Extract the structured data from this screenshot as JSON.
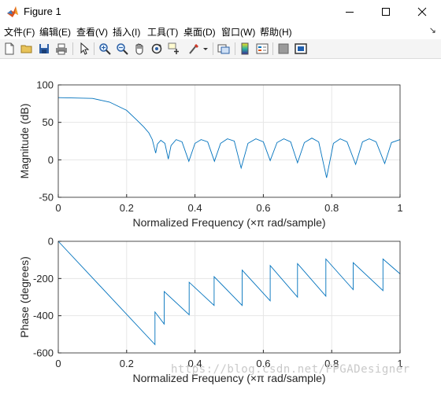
{
  "window": {
    "title": "Figure 1"
  },
  "icons": {
    "app": "matlab-logo-icon",
    "minimize": "minimize-icon",
    "maximize": "maximize-icon",
    "close": "close-icon"
  },
  "menu": {
    "items": [
      "文件(F)",
      "编辑(E)",
      "查看(V)",
      "插入(I)",
      "工具(T)",
      "桌面(D)",
      "窗口(W)",
      "帮助(H)"
    ],
    "overflow": "↘"
  },
  "toolbar": {
    "buttons": [
      "new-figure",
      "open-file",
      "save",
      "print",
      "edit-plot",
      "zoom-in",
      "zoom-out",
      "pan",
      "rotate-3d",
      "data-cursor",
      "brush",
      "link-plot",
      "insert-colorbar",
      "insert-legend",
      "hide-plot-tools",
      "show-plot-tools"
    ]
  },
  "colors": {
    "line": "#0072bd",
    "grid": "#e6e6e6",
    "axis": "#262626"
  },
  "chart_data": [
    {
      "type": "line",
      "title": "",
      "xlabel": "Normalized Frequency  (×π rad/sample)",
      "ylabel": "Magnitude (dB)",
      "xlim": [
        0,
        1
      ],
      "ylim": [
        -50,
        100
      ],
      "xticks": [
        "0",
        "0.2",
        "0.4",
        "0.6",
        "0.8",
        "1"
      ],
      "yticks": [
        "-50",
        "0",
        "50",
        "100"
      ],
      "grid": true,
      "series": [
        {
          "x": [
            0,
            0.1,
            0.15,
            0.2,
            0.23,
            0.25,
            0.265,
            0.275,
            0.285,
            0.29,
            0.3,
            0.312,
            0.322,
            0.33,
            0.345,
            0.362,
            0.382,
            0.4,
            0.418,
            0.437,
            0.457,
            0.475,
            0.495,
            0.515,
            0.535,
            0.555,
            0.578,
            0.6,
            0.62,
            0.64,
            0.66,
            0.68,
            0.7,
            0.72,
            0.742,
            0.762,
            0.785,
            0.805,
            0.825,
            0.845,
            0.87,
            0.89,
            0.91,
            0.93,
            0.955,
            0.975,
            1.0
          ],
          "y": [
            83,
            82,
            77,
            66,
            53,
            44,
            36,
            27,
            9,
            21,
            26,
            22,
            1,
            19,
            27,
            24,
            -2,
            22,
            27,
            24,
            -2,
            22,
            28,
            25,
            -11,
            22,
            28,
            24,
            -1,
            23,
            28,
            24,
            -4,
            23,
            29,
            24,
            -24,
            22,
            28,
            24,
            -6,
            24,
            28,
            24,
            -5,
            23,
            27
          ]
        }
      ]
    },
    {
      "type": "line",
      "title": "",
      "xlabel": "Normalized Frequency  (×π rad/sample)",
      "ylabel": "Phase (degrees)",
      "xlim": [
        0,
        1
      ],
      "ylim": [
        -600,
        0
      ],
      "xticks": [
        "0",
        "0.2",
        "0.4",
        "0.6",
        "0.8",
        "1"
      ],
      "yticks": [
        "-600",
        "-400",
        "-200",
        "0"
      ],
      "grid": true,
      "series": [
        {
          "x": [
            0,
            0.283,
            0.283,
            0.31,
            0.31,
            0.383,
            0.383,
            0.456,
            0.456,
            0.538,
            0.538,
            0.62,
            0.62,
            0.7,
            0.7,
            0.783,
            0.783,
            0.863,
            0.863,
            0.95,
            0.95,
            1.0
          ],
          "y": [
            0,
            -555,
            -380,
            -445,
            -270,
            -395,
            -220,
            -345,
            -190,
            -345,
            -155,
            -320,
            -130,
            -300,
            -120,
            -295,
            -95,
            -260,
            -115,
            -265,
            -95,
            -175
          ]
        }
      ]
    }
  ],
  "watermark": "https://blog.csdn.net/FPGADesigner"
}
